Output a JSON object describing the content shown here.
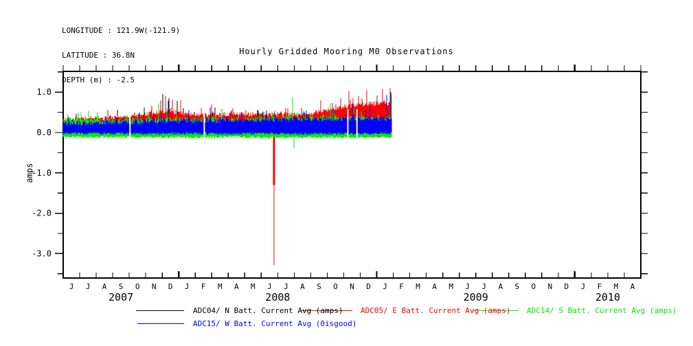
{
  "header": {
    "line1": "LONGITUDE : 121.9W(-121.9)",
    "line2": "LATITUDE : 36.8N",
    "line3": "DEPTH (m) : -2.5"
  },
  "legend": {
    "items": [
      {
        "label": "ADC04/ N Batt. Current Avg (amps)",
        "color": "#000000"
      },
      {
        "label": "ADC05/ E Batt. Current Avg (amps)",
        "color": "#ff0000"
      },
      {
        "label": "ADC14/ S Batt. Current Avg (amps)",
        "color": "#00ee00"
      },
      {
        "label": "ADC15/ W Batt. Current Avg (0isgood)",
        "color": "#0000ff"
      }
    ]
  },
  "chart_data": {
    "type": "line",
    "title": "Hourly Gridded Mooring M0 Observations",
    "ylabel": "amps",
    "ylim": [
      -3.6,
      1.51
    ],
    "grid": false,
    "legend_position": "bottom",
    "x_unit": "months since 2007-06-01",
    "x_range_months": 35,
    "data_end_month": 19.93,
    "x_axis": {
      "month_labels": [
        "J",
        "J",
        "A",
        "S",
        "O",
        "N",
        "D",
        "J",
        "F",
        "M",
        "A",
        "M",
        "J",
        "J",
        "A",
        "S",
        "O",
        "N",
        "D",
        "J",
        "F",
        "M",
        "A",
        "M",
        "J",
        "J",
        "A",
        "S",
        "O",
        "N",
        "D",
        "J",
        "F",
        "M",
        "A"
      ],
      "year_boundary_months": [
        7,
        19,
        31
      ],
      "year_labels": [
        {
          "label": "2007",
          "t": 3.5
        },
        {
          "label": "2008",
          "t": 13
        },
        {
          "label": "2009",
          "t": 25
        },
        {
          "label": "2010",
          "t": 33
        }
      ]
    },
    "y_axis": {
      "major_ticks": [
        {
          "v": 1.0,
          "label": "1.0"
        },
        {
          "v": 0.0,
          "label": "0.0"
        },
        {
          "v": -1.0,
          "label": "-1.0"
        },
        {
          "v": -2.0,
          "label": "-2.0"
        },
        {
          "v": -3.0,
          "label": "-3.0"
        }
      ],
      "minor_ticks": [
        1.5,
        0.5,
        -0.5,
        -1.5,
        -2.5,
        -3.5
      ],
      "right_ticks": [
        -3.5,
        -3.0,
        -2.5,
        -2.0,
        -1.5,
        -1.0,
        -0.5,
        0.0,
        0.5,
        1.0,
        1.5
      ]
    },
    "gaps_t": [
      4.05,
      8.55,
      17.25,
      17.8
    ],
    "render_seed_note": "envelope = [month, low, high] sampled from plot; spikes = [month, amps]",
    "series": [
      {
        "name": "ADC04/ N Batt. Current Avg (amps)",
        "color": "#000000",
        "seed": 11,
        "envelope": [
          [
            0,
            -0.05,
            0.27
          ],
          [
            3,
            -0.05,
            0.3
          ],
          [
            5,
            -0.05,
            0.36
          ],
          [
            6,
            -0.05,
            0.4
          ],
          [
            7,
            -0.05,
            0.36
          ],
          [
            9,
            -0.05,
            0.33
          ],
          [
            12,
            -0.05,
            0.35
          ],
          [
            15,
            -0.05,
            0.36
          ],
          [
            17,
            -0.05,
            0.38
          ],
          [
            19.93,
            -0.05,
            0.4
          ]
        ],
        "spikes": [
          [
            3.3,
            0.56
          ],
          [
            4.9,
            0.62
          ],
          [
            6.05,
            0.95
          ],
          [
            6.4,
            0.85
          ],
          [
            6.9,
            0.78
          ],
          [
            7.3,
            0.6
          ],
          [
            9.2,
            0.62
          ],
          [
            11.5,
            0.5
          ],
          [
            13.2,
            0.52
          ],
          [
            16.1,
            0.56
          ],
          [
            18.2,
            0.6
          ],
          [
            19.1,
            0.62
          ]
        ]
      },
      {
        "name": "ADC05/ E Batt. Current Avg (amps)",
        "color": "#ff0000",
        "seed": 22,
        "envelope": [
          [
            0,
            -0.08,
            0.3
          ],
          [
            2,
            -0.07,
            0.33
          ],
          [
            4,
            -0.08,
            0.36
          ],
          [
            5,
            -0.08,
            0.42
          ],
          [
            6,
            -0.09,
            0.5
          ],
          [
            6.5,
            -0.08,
            0.52
          ],
          [
            7,
            -0.08,
            0.45
          ],
          [
            8,
            -0.08,
            0.4
          ],
          [
            10,
            -0.08,
            0.42
          ],
          [
            12,
            -0.08,
            0.42
          ],
          [
            14,
            -0.08,
            0.43
          ],
          [
            15,
            -0.09,
            0.46
          ],
          [
            16,
            -0.08,
            0.52
          ],
          [
            17,
            -0.09,
            0.62
          ],
          [
            17.5,
            -0.1,
            0.66
          ],
          [
            18,
            -0.1,
            0.68
          ],
          [
            19,
            -0.1,
            0.7
          ],
          [
            19.5,
            -0.1,
            0.72
          ],
          [
            19.93,
            -0.1,
            0.68
          ]
        ],
        "spikes": [
          [
            5.9,
            0.8
          ],
          [
            6.2,
            0.9
          ],
          [
            6.6,
            0.82
          ],
          [
            7.1,
            0.8
          ],
          [
            9.0,
            0.7
          ],
          [
            10.3,
            0.6
          ],
          [
            13.5,
            0.6
          ],
          [
            15.6,
            0.8
          ],
          [
            16.8,
            0.85
          ],
          [
            17.3,
            1.02
          ],
          [
            17.9,
            0.9
          ],
          [
            18.4,
            1.05
          ],
          [
            19.0,
            0.92
          ],
          [
            19.35,
            1.08
          ],
          [
            19.8,
            1.1
          ]
        ],
        "major_spike": {
          "t": 12.78,
          "top": 0.12,
          "mid": -1.3,
          "bottom": -3.28
        }
      },
      {
        "name": "ADC14/ S Batt. Current Avg (amps)",
        "color": "#00ee00",
        "seed": 33,
        "envelope": [
          [
            0,
            -0.12,
            0.3
          ],
          [
            2,
            -0.11,
            0.28
          ],
          [
            4,
            -0.12,
            0.29
          ],
          [
            6,
            -0.12,
            0.31
          ],
          [
            8,
            -0.12,
            0.3
          ],
          [
            10,
            -0.11,
            0.3
          ],
          [
            12,
            -0.12,
            0.32
          ],
          [
            14,
            -0.12,
            0.34
          ],
          [
            16,
            -0.12,
            0.34
          ],
          [
            18,
            -0.12,
            0.33
          ],
          [
            19.93,
            -0.12,
            0.35
          ]
        ],
        "spikes": [
          [
            0.3,
            0.45
          ],
          [
            2.1,
            0.5
          ],
          [
            5.8,
            0.72
          ],
          [
            6.3,
            0.6
          ],
          [
            9.6,
            0.55
          ],
          [
            12.2,
            0.5
          ],
          [
            13.9,
            0.88
          ],
          [
            14.0,
            -0.38
          ],
          [
            16.2,
            0.72
          ],
          [
            17.6,
            0.6
          ],
          [
            19.9,
            0.95
          ]
        ]
      },
      {
        "name": "ADC15/ W Batt. Current Avg (0isgood)",
        "color": "#0000ff",
        "seed": 44,
        "envelope": [
          [
            0,
            -0.02,
            0.2
          ],
          [
            2,
            -0.02,
            0.22
          ],
          [
            4,
            -0.03,
            0.24
          ],
          [
            6,
            -0.03,
            0.27
          ],
          [
            8,
            -0.02,
            0.27
          ],
          [
            10,
            -0.03,
            0.28
          ],
          [
            12,
            -0.02,
            0.29
          ],
          [
            14,
            -0.03,
            0.3
          ],
          [
            16,
            -0.03,
            0.31
          ],
          [
            18,
            -0.03,
            0.33
          ],
          [
            19.93,
            -0.02,
            0.32
          ]
        ],
        "spikes": [
          [
            4.6,
            0.5
          ],
          [
            6.35,
            0.78
          ],
          [
            7.6,
            0.55
          ],
          [
            8.9,
            0.62
          ],
          [
            10.8,
            0.5
          ],
          [
            12.3,
            0.55
          ],
          [
            14.6,
            0.5
          ],
          [
            16.4,
            0.6
          ],
          [
            17.5,
            0.72
          ],
          [
            18.6,
            0.65
          ],
          [
            19.6,
            0.92
          ],
          [
            19.85,
            1.0
          ]
        ]
      }
    ]
  }
}
